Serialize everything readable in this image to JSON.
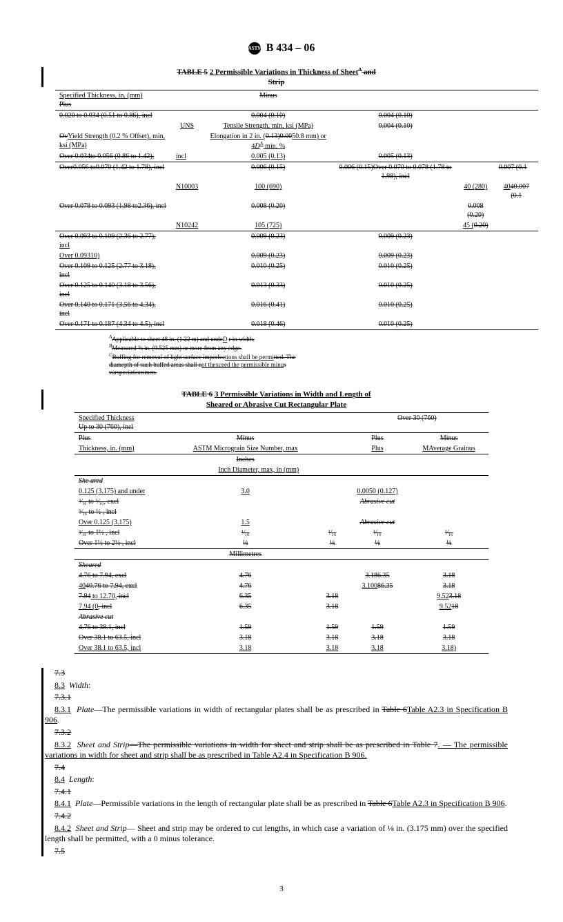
{
  "header": {
    "designation": "B 434 – 06",
    "logo_text": "ASTM"
  },
  "table5": {
    "title_a": "TABLE 5",
    "title_b": "2  Permissible Variations in Thickness of Sheet",
    "title_sup": "A",
    "title_c": " and",
    "title_d": "Strip",
    "col_spec": "Specified Thickness, in. (mm)",
    "col_plus": "Plus",
    "col_minus": "Minus",
    "uns": "UNS",
    "tensile": "Tensile Strength, min, ksi (MPa)",
    "row_020": "0.020 to 0.034 (0.51 to 0.86), incl",
    "v_004a": "0.004 (0.10)",
    "v_004b": "0.004 (0.10)",
    "v_004c": "0.004 (0.10)",
    "yield": "Yield Strength (0.2 % Offset), min, ksi (MPa)",
    "elong": "Elongation in 2 in. (",
    "elong_num": "0.13)0.00",
    "elong_mm": "50.8 mm) or 4",
    "elong_d": "D",
    "elong_sup": "A",
    "elong_end": " min, %",
    "row_over034": "Over 0.034to 0.056 (0.86 to 1.42),",
    "incl": "incl",
    "ov": "Ov",
    "v_005a": "0.005 (0.13)",
    "v_005b": "0.005 (0.13)",
    "row_056": "Over0.056 to0.070 (1.42 to 1.78),   incl",
    "v_006a": "0.006 (0.15)",
    "v_006b": "0.006 (0.15)",
    "row_070": "Over 0.070 to 0.078 (1.78 to 1.98),    incl",
    "v_007a": "0.007 (0.1",
    "n10003": "N10003",
    "val_100": "100 (690)",
    "val_40": "40 (280)",
    "val_40007": "40.007 (0.1",
    "row_078": "Over 0.078 to 0.093 (1.98 to2.36),   incl",
    "v_008a": "0.008 (0.20)",
    "v_008b": "0.008 (0.20)",
    "n10242": "N10242",
    "val_105": "105 (725)",
    "val_45": "45 (",
    "val_020": "0.20)",
    "row_093": "Over 0.093 to 0.109 (2.36 to 2.77),",
    "row_093b": "Over 0.09310)",
    "v_009a": "0.009 (0.23)",
    "v_009b": "0.009 (0.23)",
    "v_009c": "0.009 (0.23)",
    "v_009d": "0.009 (0.23)",
    "row_109": "Over 0.109 to 0.125 (2.77 to 3.18),   incl",
    "v_010a": "0.010 (0.25)",
    "v_010b": "0.010 (0.25)",
    "row_125": "Over 0.125 to 0.140 (3.18 to 3.56),   incl",
    "v_013": "0.013 (0.33)",
    "v_010c": "0.010 (0.25)",
    "row_140": "Over 0.140 to 0.171 (3.56 to 4.34),   incl",
    "v_016": "0.016 (0.41)",
    "v_010d": "0.010 (0.25)",
    "row_171": "Over 0.171 to 0.187 (4.34 to 4.5), incl",
    "v_018": "0.018 (0.46)",
    "v_010e": "0.010 (0.25)",
    "fn_a": "Applicable to sheet 48 in. (1.22 m) and unde",
    "fn_a2": "r in width.",
    "fn_a_d": "D",
    "fn_b": "Measured ⅜ in. (9.525 mm) or more from any edge.",
    "fn_c1": "Buffing for removal of light surface imperfec",
    "fn_c2": "tions shall be permi",
    "fn_c3": "tted. The",
    "fn_d1": "diamepth of such buffed areas shall n",
    "fn_d2": "ot thexceed the permissible minu",
    "fn_d3": "s",
    "fn_e": "varspeciationsmen."
  },
  "table6": {
    "title_a": "TABLE 6",
    "title_b": "3  Permissible Variations in Width and Length of",
    "title_c": "Sheared or Abrasive Cut Rectangular Plate",
    "spec_thick": "Specified Thickness",
    "upto30": "Up to 30 (760), incl",
    "over30": "Over 30 (760)",
    "plus": "Plus",
    "minus": "Minus",
    "thick": "Thickness, in. (mm)",
    "micrograin": "ASTM Micrograin Size Number, max",
    "avg_grain": "MAverage Grainus",
    "inches": "Inches",
    "inch_dia": "Inch Diameter, max, in (mm)",
    "sheared": "She ared",
    "r_125u": "0.125 (3.175) and under",
    "v_30": "3.0",
    "v_0050": "0.0050 (0.127)",
    "r_316": "³⁄₁₆ to ⁵⁄₁₆, excl",
    "abrasive_cut": "Abrasive cut",
    "r_516": "⁵⁄₁₆ to ½ , incl",
    "r_over125": "Over 0.125 (3.175)",
    "v_15": "1.5",
    "r_316_112": "³⁄₁₆ to 1½ , incl",
    "v_116": "¹⁄₁₆",
    "r_over112": "Over 1½ to 2½ , incl",
    "v_18": "⅛",
    "mm": "Millimetres",
    "sheared2": "Sheared",
    "r_476_794e": "4.76 to 7.94, excl",
    "v_476": "4.76",
    "v_318635a": "3.186.35",
    "v_318": "3.18",
    "r_4076": "40.76 to 7.94, excl",
    "v_310086": "3.10086.35",
    "r_794_1270": "7.94 to 12.70, incl",
    "v_635": "6.35",
    "v_952318": "9.523.18",
    "r_794": "7.94 (0, incl",
    "v_95218": "9.5218",
    "abrasive2": "Abrasive cut",
    "r_476_381": "4.76 to 38.1, incl",
    "v_159": "1.59",
    "r_over381_635": "Over 38.1 to 63.5, incl",
    "v_318b": "3.18",
    "v_318p": "3.18)"
  },
  "body": {
    "s73": "7.3",
    "s83": "8.3",
    "width": "Width",
    "s731": "7.3.1",
    "s831": "8.3.1",
    "plate": "Plate",
    "p831": "—The permissible variations in width of rectangular plates shall be as prescribed in ",
    "t6": "Table 6",
    "ta23": "Table A2.3 in Specification B 906",
    "s732": "7.3.2",
    "s832": "8.3.2",
    "ss": "Sheet and Strip",
    "p832a": "—The permissible variations in width for sheet and strip shall be as prescribed in Table 7",
    "p832b": ". — The permissible variations in width for sheet and strip shall be as prescribed in Table A2.4 in Specification B 906.",
    "s74": "7.4",
    "s84": "8.4",
    "length": "Length",
    "s741": "7.4.1",
    "s841": "8.4.1",
    "p841": "—Permissible variations in the length of rectangular plate shall be as prescribed in ",
    "s742": "7.4.2",
    "s842": "8.4.2",
    "p842": "— Sheet and strip may be ordered to cut lengths, in which case a variation of ⅛ in. (3.175 mm) over the specified length shall be permitted, with a 0 minus tolerance.",
    "s75": "7.5",
    "dot": ":",
    "period": "."
  },
  "page": "3"
}
